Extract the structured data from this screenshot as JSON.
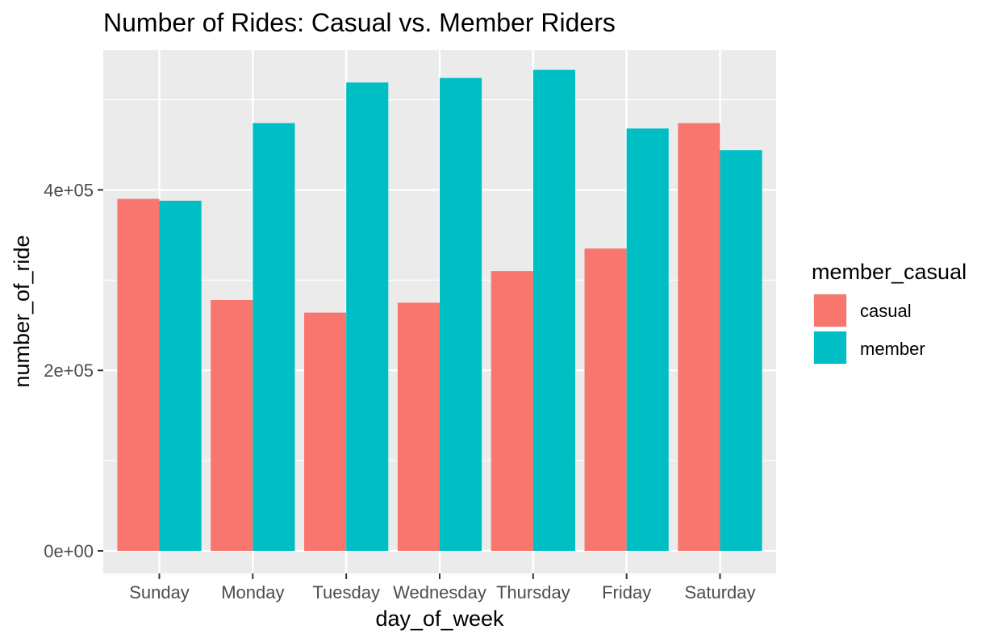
{
  "chart_data": {
    "type": "bar",
    "title": "Number of Rides: Casual vs. Member Riders",
    "xlabel": "day_of_week",
    "ylabel": "number_of_ride",
    "categories": [
      "Sunday",
      "Monday",
      "Tuesday",
      "Wednesday",
      "Thursday",
      "Friday",
      "Saturday"
    ],
    "series": [
      {
        "name": "casual",
        "color": "#F8766D",
        "values": [
          390000,
          278000,
          264000,
          275000,
          310000,
          335000,
          474000
        ]
      },
      {
        "name": "member",
        "color": "#00BFC4",
        "values": [
          388000,
          474000,
          519000,
          524000,
          533000,
          468000,
          444000
        ]
      }
    ],
    "yticks": [
      0,
      200000,
      400000
    ],
    "ytick_labels": [
      "0e+00",
      "2e+05",
      "4e+05"
    ],
    "ylim": [
      -25000,
      555000
    ],
    "legend": {
      "title": "member_casual",
      "position": "right"
    },
    "grid": true,
    "panel_background": "#EBEBEB"
  }
}
